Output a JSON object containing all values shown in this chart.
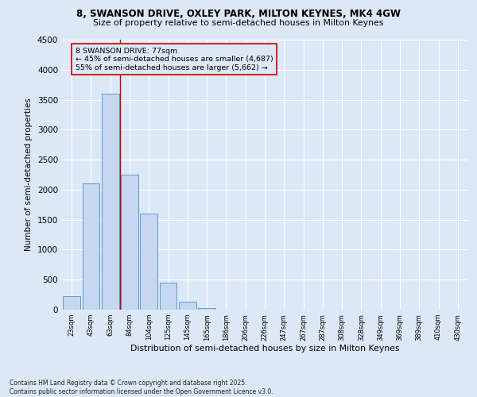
{
  "title1": "8, SWANSON DRIVE, OXLEY PARK, MILTON KEYNES, MK4 4GW",
  "title2": "Size of property relative to semi-detached houses in Milton Keynes",
  "xlabel": "Distribution of semi-detached houses by size in Milton Keynes",
  "ylabel": "Number of semi-detached properties",
  "footnote": "Contains HM Land Registry data © Crown copyright and database right 2025.\nContains public sector information licensed under the Open Government Licence v3.0.",
  "bar_color": "#c5d8f0",
  "bar_edge_color": "#5b9bd5",
  "categories": [
    "23sqm",
    "43sqm",
    "63sqm",
    "84sqm",
    "104sqm",
    "125sqm",
    "145sqm",
    "165sqm",
    "186sqm",
    "206sqm",
    "226sqm",
    "247sqm",
    "267sqm",
    "287sqm",
    "308sqm",
    "328sqm",
    "349sqm",
    "369sqm",
    "389sqm",
    "410sqm",
    "430sqm"
  ],
  "values": [
    230,
    2100,
    3600,
    2250,
    1600,
    450,
    130,
    30,
    5,
    0,
    0,
    0,
    0,
    0,
    0,
    0,
    0,
    0,
    0,
    0,
    0
  ],
  "ylim": [
    0,
    4500
  ],
  "yticks": [
    0,
    500,
    1000,
    1500,
    2000,
    2500,
    3000,
    3500,
    4000,
    4500
  ],
  "property_line_x": 2.5,
  "property_line_color": "#cc0000",
  "annotation_text": "8 SWANSON DRIVE: 77sqm\n← 45% of semi-detached houses are smaller (4,687)\n55% of semi-detached houses are larger (5,662) →",
  "annotation_box_color": "#cc0000",
  "bg_color": "#dce8f5",
  "grid_color": "#ffffff"
}
